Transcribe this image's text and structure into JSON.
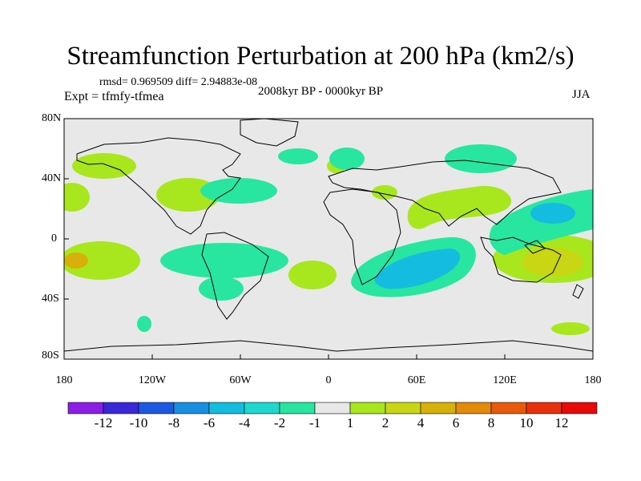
{
  "title": "Streamfunction Perturbation at 200 hPa (km2/s)",
  "stats": "rmsd= 0.969509 diff= 2.94883e-08",
  "experiment": "Expt = tfmfy-tfmea",
  "period": "2008kyr BP - 0000kyr BP",
  "season": "JJA",
  "y_ticks": [
    "80N",
    "40N",
    "0",
    "40S",
    "80S"
  ],
  "x_ticks": [
    "180",
    "120W",
    "60W",
    "0",
    "60E",
    "120E",
    "180"
  ],
  "colorbar": {
    "labels": [
      "-12",
      "-10",
      "-8",
      "-6",
      "-4",
      "-2",
      "-1",
      "1",
      "2",
      "4",
      "6",
      "8",
      "10",
      "12"
    ],
    "colors": [
      "#8a1ee6",
      "#3a28d8",
      "#1c58e0",
      "#1a8ee0",
      "#14bce0",
      "#1ed8d0",
      "#28e6a0",
      "#e8e8e8",
      "#a8e61e",
      "#c8d614",
      "#d8b00a",
      "#e48a0a",
      "#e85a0a",
      "#e8300a",
      "#e80a0a"
    ]
  }
}
